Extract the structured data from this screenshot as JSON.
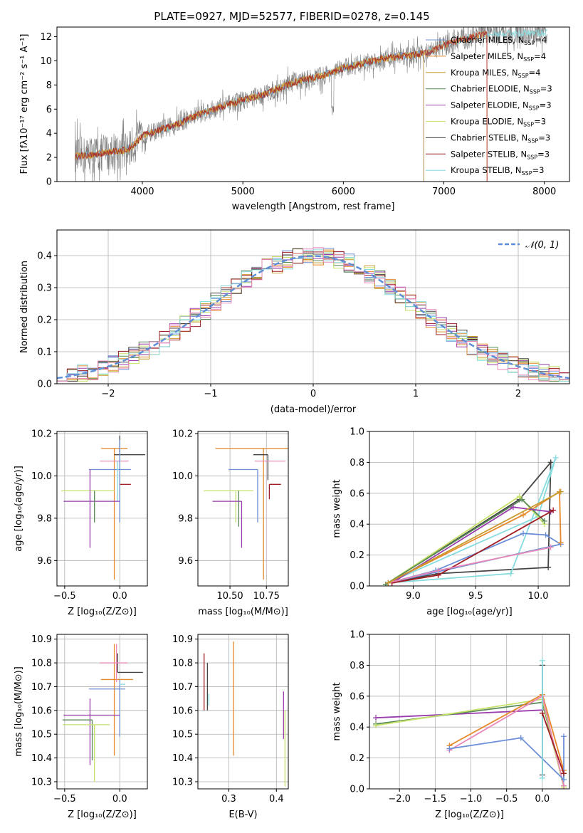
{
  "figure": {
    "title": "PLATE=0927, MJD=52577, FIBERID=0278, z=0.145"
  },
  "model_colors": {
    "Chabrier MILES": "#6b8fd6",
    "Salpeter MILES": "#e5892a",
    "Kroupa MILES": "#c99a2e",
    "Chabrier ELODIE": "#5a8a58",
    "Salpeter ELODIE": "#9a3dac",
    "Kroupa ELODIE": "#c6e26a",
    "Chabrier STELIB": "#444444",
    "Salpeter STELIB": "#a01c22",
    "Kroupa STELIB": "#86dbdf"
  },
  "extra_colors": {
    "pink": "#e889b8",
    "lime": "#d2ea4a",
    "data_grey": "#808080",
    "gauss": "#5f8fd6"
  },
  "chart_data": [
    {
      "id": "spectrum",
      "type": "line",
      "title": "PLATE=0927, MJD=52577, FIBERID=0278, z=0.145",
      "xlabel": "wavelength [Angstrom, rest frame]",
      "ylabel": "Flux [fλ10⁻¹⁷ erg cm⁻² s⁻¹ A⁻¹]",
      "xlim": [
        3150,
        8250
      ],
      "ylim": [
        0,
        12.8
      ],
      "xticks": [
        4000,
        5000,
        6000,
        7000,
        8000
      ],
      "yticks": [
        0,
        2,
        4,
        6,
        8,
        10,
        12
      ],
      "grid": false,
      "legend_position": "top-right",
      "legend": [
        {
          "label": "Chabrier MILES, N",
          "sub": "SSP",
          "suffix": "=4",
          "model": "Chabrier MILES"
        },
        {
          "label": "Salpeter MILES, N",
          "sub": "SSP",
          "suffix": "=4",
          "model": "Salpeter MILES"
        },
        {
          "label": "Kroupa MILES, N",
          "sub": "SSP",
          "suffix": "=4",
          "model": "Kroupa MILES"
        },
        {
          "label": "Chabrier ELODIE, N",
          "sub": "SSP",
          "suffix": "=3",
          "model": "Chabrier ELODIE"
        },
        {
          "label": "Salpeter ELODIE, N",
          "sub": "SSP",
          "suffix": "=3",
          "model": "Salpeter ELODIE"
        },
        {
          "label": "Kroupa ELODIE, N",
          "sub": "SSP",
          "suffix": "=3",
          "model": "Kroupa ELODIE"
        },
        {
          "label": "Chabrier STELIB, N",
          "sub": "SSP",
          "suffix": "=3",
          "model": "Chabrier STELIB"
        },
        {
          "label": "Salpeter STELIB, N",
          "sub": "SSP",
          "suffix": "=3",
          "model": "Salpeter STELIB"
        },
        {
          "label": "Kroupa STELIB, N",
          "sub": "SSP",
          "suffix": "=3",
          "model": "Kroupa STELIB"
        }
      ],
      "continuum": [
        [
          3330,
          2.1
        ],
        [
          3500,
          2.2
        ],
        [
          3700,
          2.5
        ],
        [
          3850,
          2.6
        ],
        [
          3950,
          3.3
        ],
        [
          4000,
          3.8
        ],
        [
          4300,
          4.6
        ],
        [
          4600,
          5.7
        ],
        [
          4900,
          6.5
        ],
        [
          5200,
          7.2
        ],
        [
          5500,
          8.2
        ],
        [
          5800,
          8.8
        ],
        [
          6000,
          9.4
        ],
        [
          6200,
          9.8
        ],
        [
          6400,
          10.2
        ],
        [
          6600,
          10.4
        ],
        [
          6800,
          10.6
        ],
        [
          7000,
          11.3
        ],
        [
          7200,
          11.8
        ],
        [
          7400,
          12.2
        ],
        [
          7800,
          12.3
        ],
        [
          8000,
          12.3
        ]
      ],
      "series_x_ranges": [
        [
          3330,
          8030
        ],
        [
          3330,
          7430
        ],
        [
          3330,
          6800
        ]
      ],
      "notes_absorption": [
        {
          "x": 5890,
          "y": 5.5
        }
      ]
    },
    {
      "id": "residual_histogram",
      "type": "bar",
      "xlabel": "(data-model)/error",
      "ylabel": "Normed distribution",
      "xlim": [
        -2.5,
        2.5
      ],
      "ylim": [
        0,
        0.48
      ],
      "xticks": [
        -2,
        -1,
        0,
        1,
        2
      ],
      "yticks": [
        0.0,
        0.1,
        0.2,
        0.3,
        0.4
      ],
      "grid": true,
      "legend_position": "top-right",
      "legend_label": "𝒩(0, 1)",
      "bin_width": 0.1,
      "bin_start": -2.5,
      "gaussian_mean": 0,
      "gaussian_sigma": 1
    },
    {
      "id": "age_vs_Z",
      "type": "scatter",
      "xlabel": "Z [log₁₀(Z/Z⊙)]",
      "ylabel": "age  [log₁₀(age/yr)]",
      "xlim": [
        -0.57,
        0.25
      ],
      "ylim": [
        9.48,
        10.21
      ],
      "xticks": [
        -0.5,
        0.0
      ],
      "yticks": [
        9.6,
        9.8,
        10.0,
        10.2
      ],
      "grid": true,
      "points": [
        {
          "model": "Salpeter MILES",
          "x": -0.05,
          "xerr": [
            0.12,
            0.12
          ],
          "y": 10.13,
          "yerr": [
            0.62,
            0.0
          ]
        },
        {
          "model": "Chabrier STELIB",
          "x": 0.0,
          "xerr": [
            0.05,
            0.23
          ],
          "y": 10.1,
          "yerr": [
            0.0,
            0.09
          ]
        },
        {
          "model": "pink",
          "x": 0.0,
          "xerr": [
            0.18,
            0.08
          ],
          "y": 10.07,
          "yerr": [
            0.0,
            0.0
          ]
        },
        {
          "model": "Chabrier MILES",
          "x": 0.0,
          "xerr": [
            0.28,
            0.1
          ],
          "y": 10.03,
          "yerr": [
            0.25,
            0.14
          ]
        },
        {
          "model": "Salpeter STELIB",
          "x": 0.0,
          "xerr": [
            0.0,
            0.1
          ],
          "y": 9.96,
          "yerr": [
            0.0,
            0.0
          ]
        },
        {
          "model": "Kroupa ELODIE",
          "x": -0.23,
          "xerr": [
            0.3,
            0.18
          ],
          "y": 9.93,
          "yerr": [
            0.12,
            0.0
          ]
        },
        {
          "model": "Kroupa STELIB",
          "x": -0.02,
          "xerr": [
            0.0,
            0.0
          ],
          "y": 10.0,
          "yerr": [
            0.12,
            0.07
          ]
        },
        {
          "model": "Salpeter ELODIE",
          "x": -0.27,
          "xerr": [
            0.24,
            0.27
          ],
          "y": 9.88,
          "yerr": [
            0.22,
            0.15
          ]
        },
        {
          "model": "Chabrier ELODIE",
          "x": -0.23,
          "xerr": [
            0.0,
            0.0
          ],
          "y": 9.93,
          "yerr": [
            0.15,
            0.0
          ]
        }
      ]
    },
    {
      "id": "age_vs_mass",
      "type": "scatter",
      "xlabel": "mass [log₁₀(M/M⊙)]",
      "ylabel": "",
      "xlim": [
        10.28,
        10.9
      ],
      "ylim": [
        9.48,
        10.21
      ],
      "xticks": [
        10.5,
        10.75
      ],
      "yticks": [
        9.6,
        9.8,
        10.0,
        10.2
      ],
      "grid": true,
      "points": [
        {
          "model": "Salpeter MILES",
          "x": 10.73,
          "xerr": [
            0.33,
            0.17
          ],
          "y": 10.13,
          "yerr": [
            0.62,
            0.0
          ]
        },
        {
          "model": "Chabrier STELIB",
          "x": 10.76,
          "xerr": [
            0.1,
            0.0
          ],
          "y": 10.1,
          "yerr": [
            0.12,
            0.0
          ]
        },
        {
          "model": "pink",
          "x": 10.79,
          "xerr": [
            0.12,
            0.09
          ],
          "y": 10.07,
          "yerr": [
            0.0,
            0.0
          ]
        },
        {
          "model": "Chabrier MILES",
          "x": 10.69,
          "xerr": [
            0.2,
            0.0
          ],
          "y": 10.03,
          "yerr": [
            0.25,
            0.0
          ]
        },
        {
          "model": "Salpeter STELIB",
          "x": 10.77,
          "xerr": [
            0.0,
            0.08
          ],
          "y": 9.96,
          "yerr": [
            0.07,
            0.0
          ]
        },
        {
          "model": "Kroupa ELODIE",
          "x": 10.54,
          "xerr": [
            0.22,
            0.12
          ],
          "y": 9.93,
          "yerr": [
            0.15,
            0.0
          ]
        },
        {
          "model": "Chabrier ELODIE",
          "x": 10.56,
          "xerr": [
            0.0,
            0.0
          ],
          "y": 9.93,
          "yerr": [
            0.17,
            0.0
          ]
        },
        {
          "model": "Salpeter ELODIE",
          "x": 10.58,
          "xerr": [
            0.2,
            0.0
          ],
          "y": 9.88,
          "yerr": [
            0.22,
            0.0
          ]
        }
      ]
    },
    {
      "id": "weight_vs_age",
      "type": "line",
      "xlabel": "age  [log₁₀(age/yr)]",
      "ylabel": "mass weight",
      "xlim": [
        8.65,
        10.25
      ],
      "ylim": [
        0,
        1
      ],
      "xticks": [
        9.0,
        9.5,
        10.0
      ],
      "yticks": [
        0.0,
        0.2,
        0.4,
        0.6,
        0.8,
        1.0
      ],
      "grid": true,
      "series": [
        {
          "model": "Chabrier STELIB",
          "points": [
            [
              8.8,
              0.02
            ],
            [
              9.85,
              0.56
            ],
            [
              10.1,
              0.8
            ],
            [
              10.08,
              0.12
            ],
            [
              9.2,
              0.08
            ],
            [
              8.8,
              0.02
            ]
          ]
        },
        {
          "model": "Kroupa STELIB",
          "points": [
            [
              8.8,
              0.02
            ],
            [
              9.78,
              0.08
            ],
            [
              10.14,
              0.83
            ],
            [
              10.0,
              0.45
            ],
            [
              8.8,
              0.02
            ]
          ]
        },
        {
          "model": "Chabrier MILES",
          "points": [
            [
              8.8,
              0.02
            ],
            [
              9.18,
              0.1
            ],
            [
              9.88,
              0.34
            ],
            [
              10.06,
              0.33
            ],
            [
              10.18,
              0.27
            ],
            [
              8.8,
              0.02
            ]
          ]
        },
        {
          "model": "Salpeter MILES",
          "points": [
            [
              8.8,
              0.02
            ],
            [
              9.88,
              0.46
            ],
            [
              10.17,
              0.61
            ],
            [
              10.18,
              0.28
            ]
          ]
        },
        {
          "model": "Kroupa ELODIE",
          "points": [
            [
              8.78,
              0.01
            ],
            [
              9.85,
              0.58
            ],
            [
              10.05,
              0.4
            ]
          ]
        },
        {
          "model": "Chabrier ELODIE",
          "points": [
            [
              8.78,
              0.01
            ],
            [
              9.87,
              0.56
            ],
            [
              10.05,
              0.42
            ]
          ]
        },
        {
          "model": "Salpeter ELODIE",
          "points": [
            [
              8.83,
              0.02
            ],
            [
              9.8,
              0.51
            ],
            [
              10.1,
              0.48
            ]
          ]
        },
        {
          "model": "Salpeter STELIB",
          "points": [
            [
              8.83,
              0.02
            ],
            [
              9.2,
              0.07
            ],
            [
              10.12,
              0.49
            ]
          ]
        },
        {
          "model": "pink",
          "points": [
            [
              8.8,
              0.02
            ],
            [
              9.2,
              0.1
            ],
            [
              10.1,
              0.25
            ]
          ]
        },
        {
          "model": "Kroupa MILES",
          "points": [
            [
              8.8,
              0.02
            ],
            [
              10.18,
              0.61
            ]
          ]
        }
      ]
    },
    {
      "id": "mass_vs_Z",
      "type": "scatter",
      "xlabel": "Z [log₁₀(Z/Z⊙)]",
      "ylabel": "mass [log₁₀(M/M⊙)]",
      "xlim": [
        -0.57,
        0.25
      ],
      "ylim": [
        10.27,
        10.92
      ],
      "xticks": [
        -0.5,
        0.0
      ],
      "yticks": [
        10.3,
        10.4,
        10.5,
        10.6,
        10.7,
        10.8,
        10.9
      ],
      "grid": true,
      "points": [
        {
          "model": "Chabrier STELIB",
          "x": -0.02,
          "xerr": [
            0.0,
            0.23
          ],
          "y": 10.76,
          "yerr": [
            0.0,
            0.08
          ]
        },
        {
          "model": "Salpeter MILES",
          "x": -0.05,
          "xerr": [
            0.12,
            0.17
          ],
          "y": 10.73,
          "yerr": [
            0.32,
            0.15
          ]
        },
        {
          "model": "pink",
          "x": -0.03,
          "xerr": [
            0.15,
            0.1
          ],
          "y": 10.8,
          "yerr": [
            0.08,
            0.08
          ]
        },
        {
          "model": "Chabrier MILES",
          "x": 0.0,
          "xerr": [
            0.28,
            0.05
          ],
          "y": 10.69,
          "yerr": [
            0.2,
            0.04
          ]
        },
        {
          "model": "Kroupa STELIB",
          "x": 0.0,
          "xerr": [
            0.0,
            0.05
          ],
          "y": 10.71,
          "yerr": [
            0.0,
            0.0
          ]
        },
        {
          "model": "Salpeter ELODIE",
          "x": -0.27,
          "xerr": [
            0.24,
            0.27
          ],
          "y": 10.58,
          "yerr": [
            0.21,
            0.07
          ]
        },
        {
          "model": "Chabrier ELODIE",
          "x": -0.25,
          "xerr": [
            0.27,
            0.0
          ],
          "y": 10.56,
          "yerr": [
            0.17,
            0.0
          ]
        },
        {
          "model": "Kroupa ELODIE",
          "x": -0.23,
          "xerr": [
            0.29,
            0.14
          ],
          "y": 10.54,
          "yerr": [
            0.24,
            0.0
          ]
        }
      ]
    },
    {
      "id": "mass_vs_ebv",
      "type": "scatter",
      "xlabel": "E(B-V)",
      "ylabel": "",
      "xlim": [
        0.235,
        0.425
      ],
      "ylim": [
        10.27,
        10.92
      ],
      "xticks": [
        0.3,
        0.4
      ],
      "yticks": [
        10.3,
        10.4,
        10.5,
        10.6,
        10.7,
        10.8,
        10.9
      ],
      "grid": true,
      "points": [
        {
          "model": "Salpeter STELIB",
          "x": 0.248,
          "yerr": [
            0.12,
            0.12
          ],
          "y": 10.72
        },
        {
          "model": "Chabrier STELIB",
          "x": 0.255,
          "yerr": [
            0.1,
            0.1
          ],
          "y": 10.7
        },
        {
          "model": "Kroupa STELIB",
          "x": 0.258,
          "yerr": [
            0.05,
            0.0
          ],
          "y": 10.67
        },
        {
          "model": "Salpeter MILES",
          "x": 0.31,
          "yerr": [
            0.48,
            0.0
          ],
          "y": 10.89
        },
        {
          "model": "Salpeter ELODIE",
          "x": 0.415,
          "yerr": [
            0.1,
            0.1
          ],
          "y": 10.58
        },
        {
          "model": "Kroupa ELODIE",
          "x": 0.418,
          "yerr": [
            0.32,
            0.0
          ],
          "y": 10.6
        }
      ]
    },
    {
      "id": "weight_vs_Z",
      "type": "line",
      "xlabel": "Z [log₁₀(Z/Z⊙)]",
      "ylabel": "mass weight",
      "xlim": [
        -2.42,
        0.38
      ],
      "ylim": [
        0,
        1
      ],
      "xticks": [
        -2.0,
        -1.5,
        -1.0,
        -0.5,
        0.0
      ],
      "yticks": [
        0.0,
        0.2,
        0.4,
        0.6,
        0.8,
        1.0
      ],
      "grid": true,
      "series": [
        {
          "model": "Salpeter ELODIE",
          "points": [
            [
              -2.33,
              0.46
            ],
            [
              0.0,
              0.51
            ]
          ]
        },
        {
          "model": "Chabrier ELODIE",
          "points": [
            [
              -2.33,
              0.42
            ],
            [
              0.0,
              0.56
            ],
            [
              0.3,
              0.02
            ]
          ]
        },
        {
          "model": "Kroupa ELODIE",
          "points": [
            [
              -2.33,
              0.41
            ],
            [
              0.0,
              0.58
            ],
            [
              0.3,
              0.01
            ]
          ]
        },
        {
          "model": "Salpeter MILES",
          "points": [
            [
              -1.3,
              0.28
            ],
            [
              0.0,
              0.61
            ],
            [
              0.3,
              0.12
            ]
          ]
        },
        {
          "model": "pink",
          "points": [
            [
              -1.3,
              0.25
            ],
            [
              0.0,
              0.6
            ],
            [
              0.3,
              0.02
            ]
          ]
        },
        {
          "model": "Chabrier MILES",
          "points": [
            [
              -1.3,
              0.26
            ],
            [
              -0.3,
              0.33
            ],
            [
              0.3,
              0.06
            ],
            [
              0.3,
              0.34
            ]
          ]
        },
        {
          "model": "Chabrier STELIB",
          "points": [
            [
              0.0,
              0.8
            ],
            [
              0.0,
              0.09
            ]
          ]
        },
        {
          "model": "Kroupa STELIB",
          "points": [
            [
              0.0,
              0.83
            ],
            [
              0.0,
              0.07
            ]
          ]
        },
        {
          "model": "Salpeter STELIB",
          "points": [
            [
              0.0,
              0.49
            ],
            [
              0.3,
              0.1
            ]
          ]
        }
      ]
    }
  ]
}
